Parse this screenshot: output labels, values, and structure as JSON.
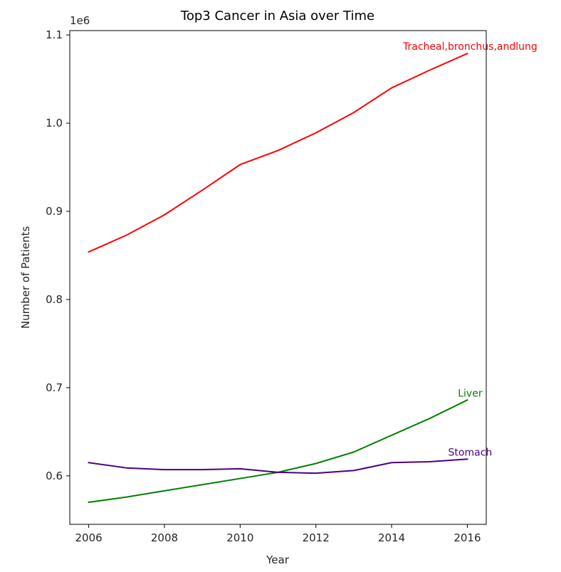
{
  "chart_data": {
    "type": "line",
    "title": "Top3 Cancer in Asia over Time",
    "xlabel": "Year",
    "ylabel": "Number of Patients",
    "offset_label": "1e6",
    "x": [
      2006,
      2007,
      2008,
      2009,
      2010,
      2011,
      2012,
      2013,
      2014,
      2015,
      2016
    ],
    "xlim": [
      2005.5,
      2016.5
    ],
    "ylim": [
      545000,
      1105000
    ],
    "x_ticks": [
      2006,
      2008,
      2010,
      2012,
      2014,
      2016
    ],
    "x_tick_labels": [
      "2006",
      "2008",
      "2010",
      "2012",
      "2014",
      "2016"
    ],
    "y_ticks": [
      600000,
      700000,
      800000,
      900000,
      1000000,
      1100000
    ],
    "y_tick_labels": [
      "0.6",
      "0.7",
      "0.8",
      "0.9",
      "1.0",
      "1.1"
    ],
    "grid": false,
    "legend": "none",
    "series": [
      {
        "name": "Tracheal,bronchus,andlung",
        "color": "#ff0000",
        "values": [
          854000,
          873000,
          896000,
          924000,
          953000,
          969000,
          989000,
          1012000,
          1040000,
          1060000,
          1079000
        ]
      },
      {
        "name": "Liver",
        "color": "#008000",
        "values": [
          570000,
          576000,
          583000,
          590000,
          597000,
          604000,
          614000,
          627000,
          646000,
          665000,
          686000
        ]
      },
      {
        "name": "Stomach",
        "color": "#4b0082",
        "values": [
          615000,
          609000,
          607000,
          607000,
          608000,
          604000,
          603000,
          606000,
          615000,
          616000,
          619000
        ]
      }
    ]
  }
}
